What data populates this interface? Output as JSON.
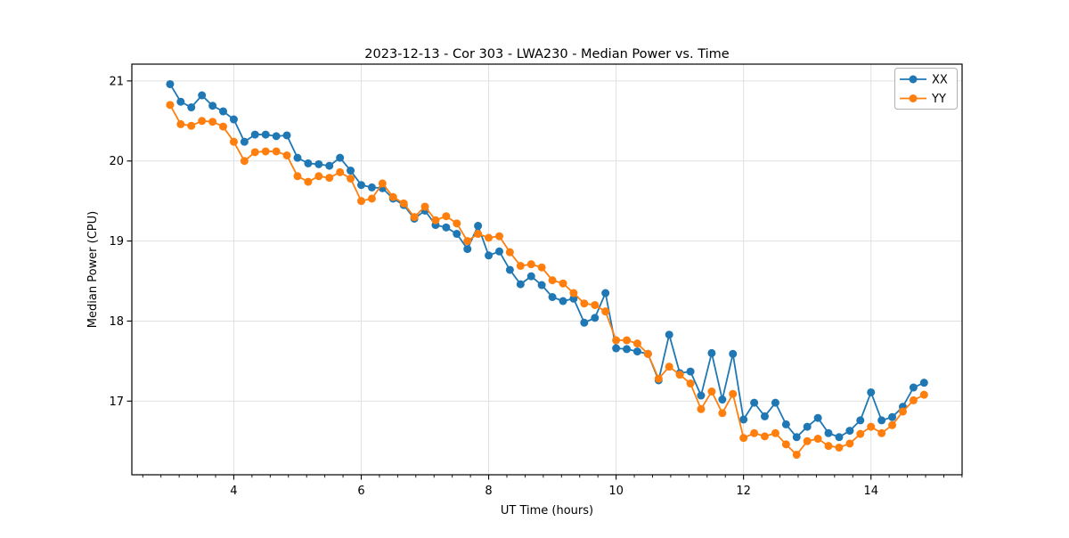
{
  "page": {
    "background": "#ffffff"
  },
  "chart_data": {
    "type": "line",
    "title": "2023-12-13 - Cor 303 - LWA230 - Median Power vs. Time",
    "xlabel": "UT Time (hours)",
    "ylabel": "Median Power (CPU)",
    "xlim": [
      2.4,
      15.43
    ],
    "ylim": [
      16.08,
      21.21
    ],
    "x_major_ticks": [
      4,
      6,
      8,
      10,
      12,
      14
    ],
    "x_minor_tick_step": 0.2857,
    "y_major_ticks": [
      17,
      18,
      19,
      20,
      21
    ],
    "grid": true,
    "legend": {
      "position": "upper right"
    },
    "x": [
      3.0,
      3.167,
      3.333,
      3.5,
      3.667,
      3.833,
      4.0,
      4.167,
      4.333,
      4.5,
      4.667,
      4.833,
      5.0,
      5.167,
      5.333,
      5.5,
      5.667,
      5.833,
      6.0,
      6.167,
      6.333,
      6.5,
      6.667,
      6.833,
      7.0,
      7.167,
      7.333,
      7.5,
      7.667,
      7.833,
      8.0,
      8.167,
      8.333,
      8.5,
      8.667,
      8.833,
      9.0,
      9.167,
      9.333,
      9.5,
      9.667,
      9.833,
      10.0,
      10.167,
      10.333,
      10.5,
      10.667,
      10.833,
      11.0,
      11.167,
      11.333,
      11.5,
      11.667,
      11.833,
      12.0,
      12.167,
      12.333,
      12.5,
      12.667,
      12.833,
      13.0,
      13.167,
      13.333,
      13.5,
      13.667,
      13.833,
      14.0,
      14.167,
      14.333,
      14.5,
      14.667,
      14.833
    ],
    "series": [
      {
        "name": "XX",
        "color": "#1f77b4",
        "marker": "circle",
        "values": [
          20.96,
          20.74,
          20.67,
          20.82,
          20.69,
          20.62,
          20.52,
          20.24,
          20.33,
          20.33,
          20.31,
          20.32,
          20.04,
          19.97,
          19.96,
          19.94,
          20.04,
          19.88,
          19.7,
          19.67,
          19.66,
          19.53,
          19.45,
          19.28,
          19.38,
          19.2,
          19.17,
          19.09,
          18.9,
          19.19,
          18.82,
          18.87,
          18.64,
          18.46,
          18.56,
          18.45,
          18.3,
          18.25,
          18.28,
          17.98,
          18.04,
          18.35,
          17.66,
          17.65,
          17.62,
          17.59,
          17.26,
          17.83,
          17.35,
          17.37,
          17.07,
          17.6,
          17.02,
          17.59,
          16.77,
          16.98,
          16.81,
          16.98,
          16.71,
          16.55,
          16.68,
          16.79,
          16.6,
          16.55,
          16.63,
          16.76,
          17.11,
          16.76,
          16.8,
          16.93,
          17.17,
          17.23
        ]
      },
      {
        "name": "YY",
        "color": "#ff7f0e",
        "marker": "circle",
        "values": [
          20.7,
          20.46,
          20.44,
          20.5,
          20.49,
          20.43,
          20.24,
          20.0,
          20.11,
          20.12,
          20.12,
          20.07,
          19.81,
          19.74,
          19.81,
          19.79,
          19.86,
          19.78,
          19.5,
          19.53,
          19.72,
          19.55,
          19.47,
          19.3,
          19.43,
          19.26,
          19.31,
          19.22,
          19.0,
          19.09,
          19.04,
          19.06,
          18.86,
          18.69,
          18.71,
          18.67,
          18.51,
          18.47,
          18.35,
          18.22,
          18.2,
          18.12,
          17.76,
          17.76,
          17.72,
          17.59,
          17.28,
          17.43,
          17.33,
          17.22,
          16.9,
          17.12,
          16.85,
          17.09,
          16.54,
          16.6,
          16.56,
          16.6,
          16.46,
          16.33,
          16.5,
          16.53,
          16.44,
          16.42,
          16.47,
          16.59,
          16.68,
          16.6,
          16.7,
          16.87,
          17.01,
          17.08
        ]
      }
    ]
  },
  "styles": {
    "grid_color": "#e0e0e0",
    "axis_color": "#000000",
    "legend_border": "#b0b0b0",
    "plot_background": "#ffffff"
  }
}
